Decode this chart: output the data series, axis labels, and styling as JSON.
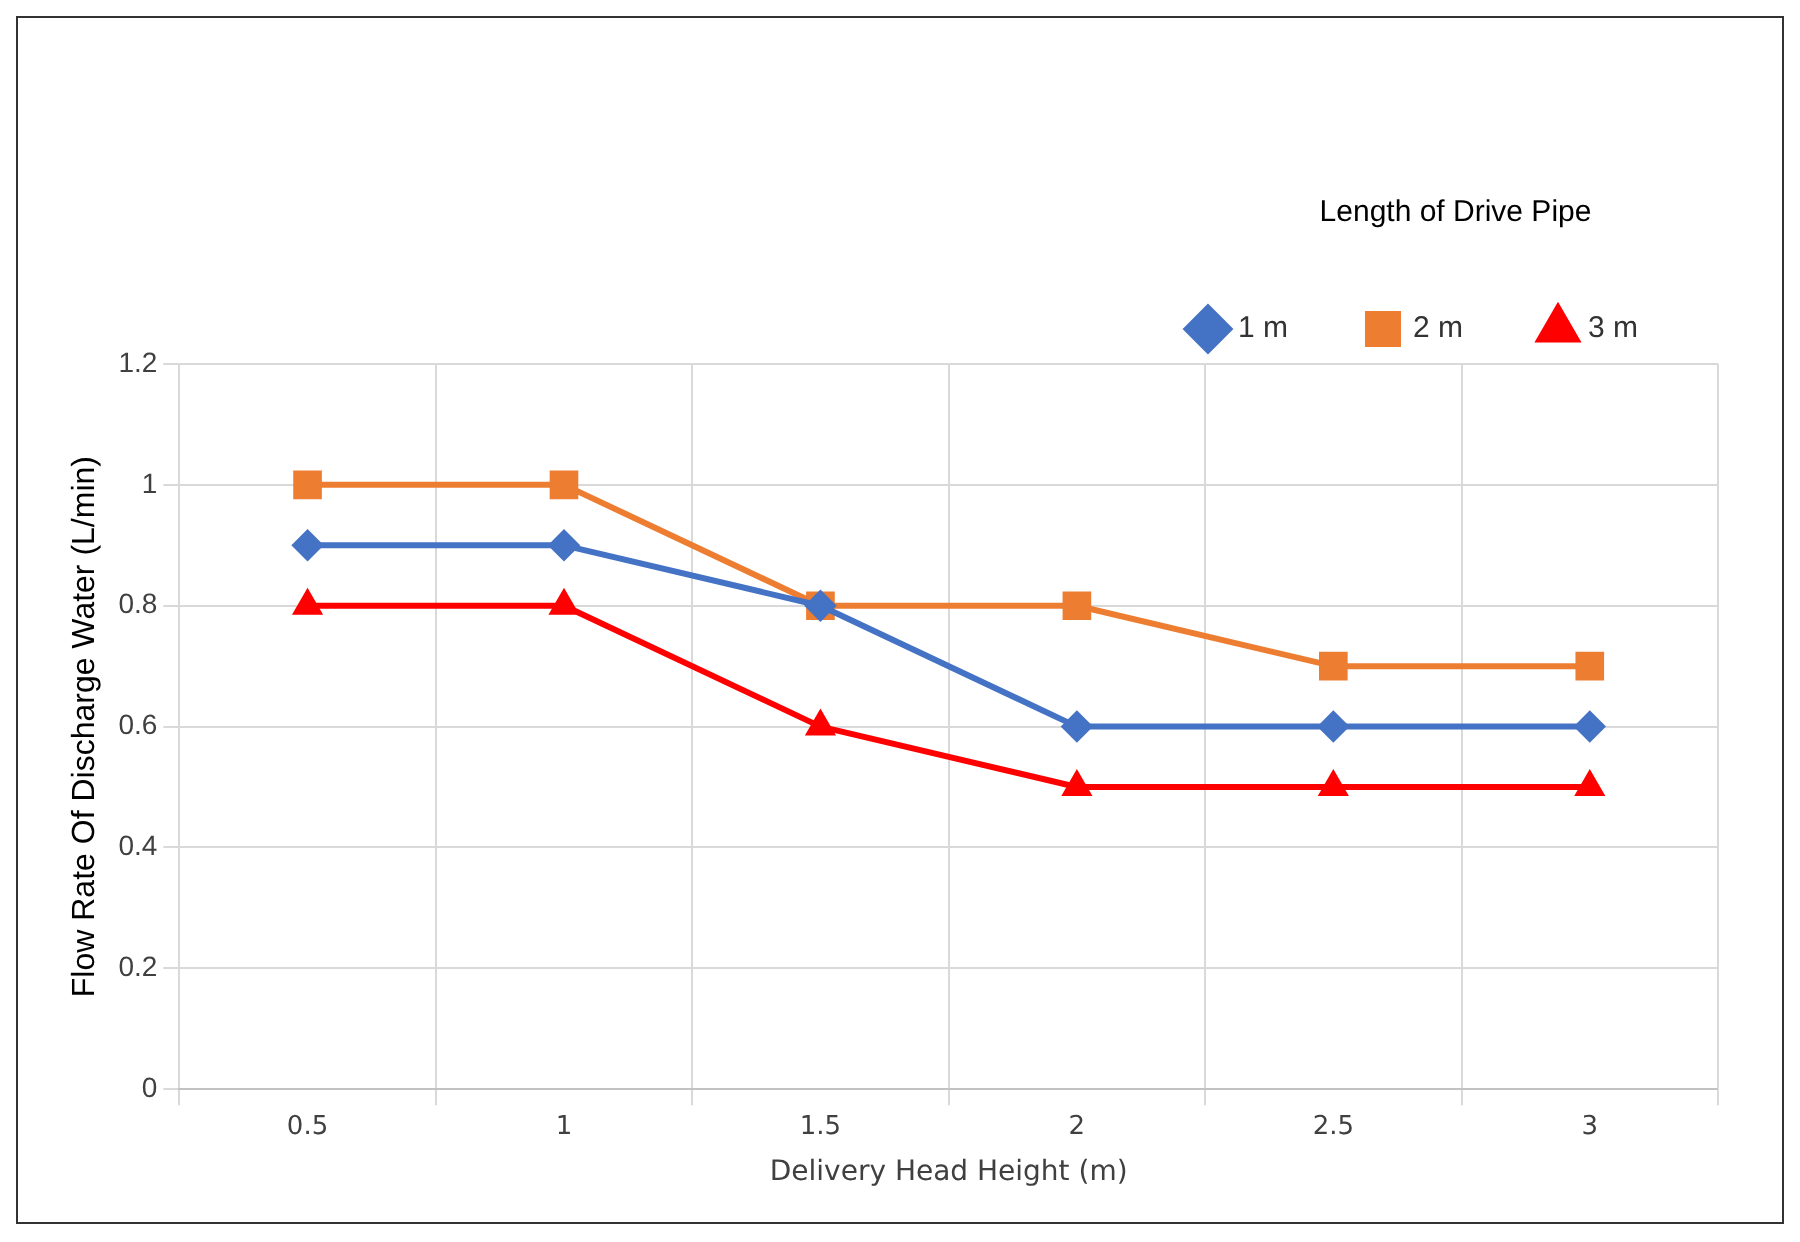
{
  "chart_data": {
    "type": "line",
    "xlabel": "Delivery Head Height (m)",
    "ylabel": "Flow Rate Of Discharge Water (L/min)",
    "legend_title": "Length of Drive Pipe",
    "categories": [
      "0.5",
      "1",
      "1.5",
      "2",
      "2.5",
      "3"
    ],
    "series": [
      {
        "name": "1 m",
        "color": "#4472c4",
        "marker": "diamond",
        "values": [
          0.9,
          0.9,
          0.8,
          0.6,
          0.6,
          0.6
        ]
      },
      {
        "name": "2 m",
        "color": "#ed7d31",
        "marker": "square",
        "values": [
          1,
          1,
          0.8,
          0.8,
          0.7,
          0.7
        ]
      },
      {
        "name": "3 m",
        "color": "#ff0000",
        "marker": "triangle",
        "values": [
          0.8,
          0.8,
          0.6,
          0.5,
          0.5,
          0.5
        ]
      }
    ],
    "ylim": [
      0,
      1.2
    ],
    "yticks": [
      0,
      0.2,
      0.4,
      0.6,
      0.8,
      1,
      1.2
    ],
    "grid": true,
    "legend": "top",
    "line_style": "solid"
  }
}
